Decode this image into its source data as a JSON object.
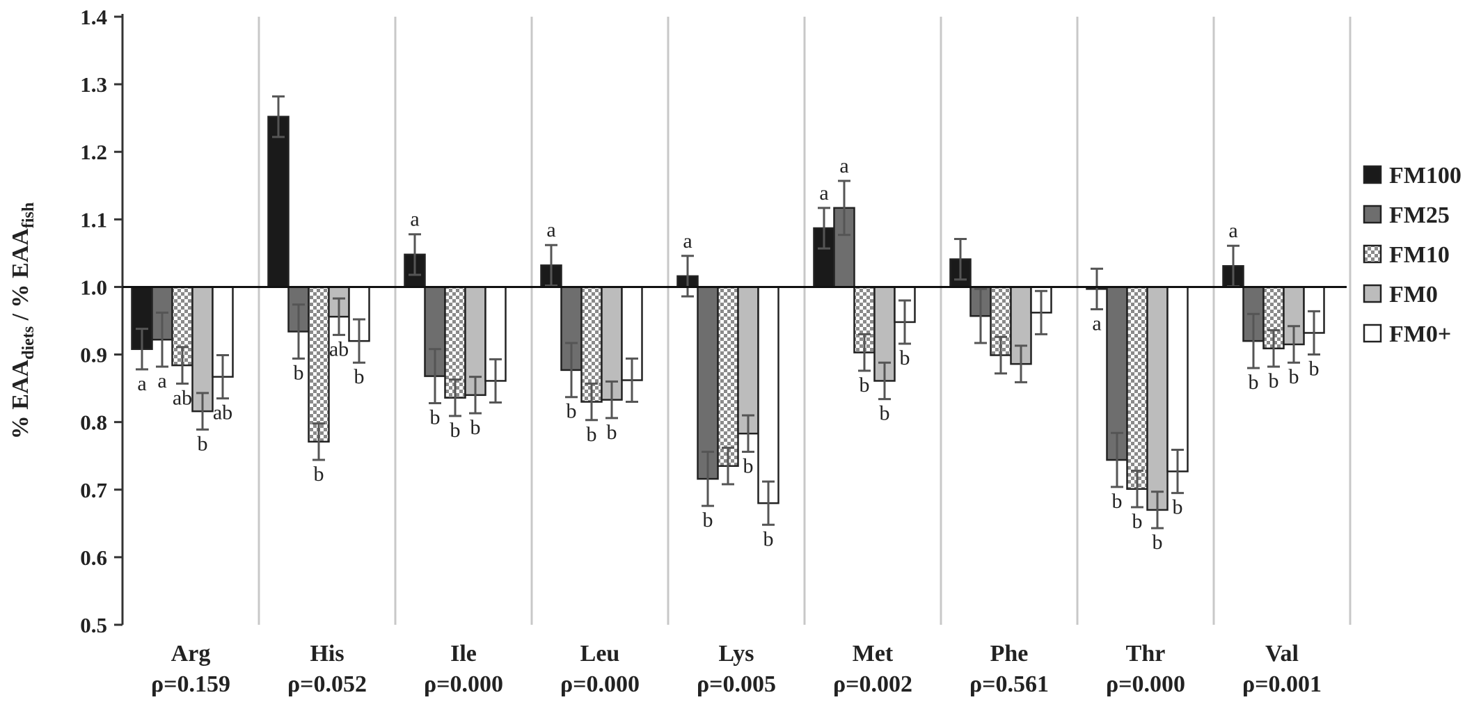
{
  "chart_data": {
    "type": "bar",
    "ylabel": "% EAA",
    "ylabel_subscript_1": "diets",
    "ylabel_mid": " / % EAA",
    "ylabel_subscript_2": "fish",
    "ylim": [
      0.5,
      1.4
    ],
    "yticks": [
      "0.5",
      "0.6",
      "0.7",
      "0.8",
      "0.9",
      "1.0",
      "1.1",
      "1.2",
      "1.3",
      "1.4"
    ],
    "baseline": 1.0,
    "grid": false,
    "legend_position": "right",
    "categories": [
      "Arg",
      "His",
      "Ile",
      "Leu",
      "Lys",
      "Met",
      "Phe",
      "Thr",
      "Val"
    ],
    "p_values": [
      "ρ=0.159",
      "ρ=0.052",
      "ρ=0.000",
      "ρ=0.000",
      "ρ=0.005",
      "ρ=0.002",
      "ρ=0.561",
      "ρ=0.000",
      "ρ=0.001"
    ],
    "series": [
      {
        "name": "FM100",
        "color": "#1a1a1a",
        "pattern": "solid",
        "values": [
          0.908,
          1.252,
          1.048,
          1.032,
          1.016,
          1.087,
          1.041,
          0.997,
          1.031
        ],
        "errors": [
          0.03,
          0.03,
          0.03,
          0.03,
          0.03,
          0.03,
          0.03,
          0.03,
          0.03
        ],
        "letters": [
          "a",
          "",
          "a",
          "a",
          "a",
          "a",
          "",
          "a",
          "a"
        ]
      },
      {
        "name": "FM25",
        "color": "#6e6e6e",
        "pattern": "solid",
        "values": [
          0.922,
          0.934,
          0.868,
          0.877,
          0.716,
          1.117,
          0.957,
          0.744,
          0.92
        ],
        "errors": [
          0.04,
          0.04,
          0.04,
          0.04,
          0.04,
          0.04,
          0.04,
          0.04,
          0.04
        ],
        "letters": [
          "a",
          "b",
          "b",
          "b",
          "b",
          "a",
          "",
          "b",
          "b"
        ]
      },
      {
        "name": "FM10",
        "color": "#9a9a9a",
        "pattern": "checker",
        "values": [
          0.884,
          0.771,
          0.836,
          0.83,
          0.735,
          0.903,
          0.899,
          0.701,
          0.909
        ],
        "errors": [
          0.027,
          0.027,
          0.027,
          0.027,
          0.027,
          0.027,
          0.027,
          0.027,
          0.027
        ],
        "letters": [
          "ab",
          "b",
          "b",
          "b",
          "",
          "b",
          "",
          "b",
          "b"
        ]
      },
      {
        "name": "FM0",
        "color": "#bcbcbc",
        "pattern": "solid",
        "values": [
          0.816,
          0.956,
          0.84,
          0.833,
          0.783,
          0.861,
          0.886,
          0.67,
          0.915
        ],
        "errors": [
          0.027,
          0.027,
          0.027,
          0.027,
          0.027,
          0.027,
          0.027,
          0.027,
          0.027
        ],
        "letters": [
          "b",
          "ab",
          "b",
          "b",
          "b",
          "b",
          "",
          "b",
          "b"
        ]
      },
      {
        "name": "FM0+",
        "color": "#ffffff",
        "pattern": "solid",
        "values": [
          0.867,
          0.92,
          0.861,
          0.862,
          0.68,
          0.948,
          0.962,
          0.727,
          0.932
        ],
        "errors": [
          0.032,
          0.032,
          0.032,
          0.032,
          0.032,
          0.032,
          0.032,
          0.032,
          0.032
        ],
        "letters": [
          "ab",
          "b",
          "",
          "",
          "b",
          "b",
          "",
          "b",
          "b"
        ]
      }
    ]
  }
}
